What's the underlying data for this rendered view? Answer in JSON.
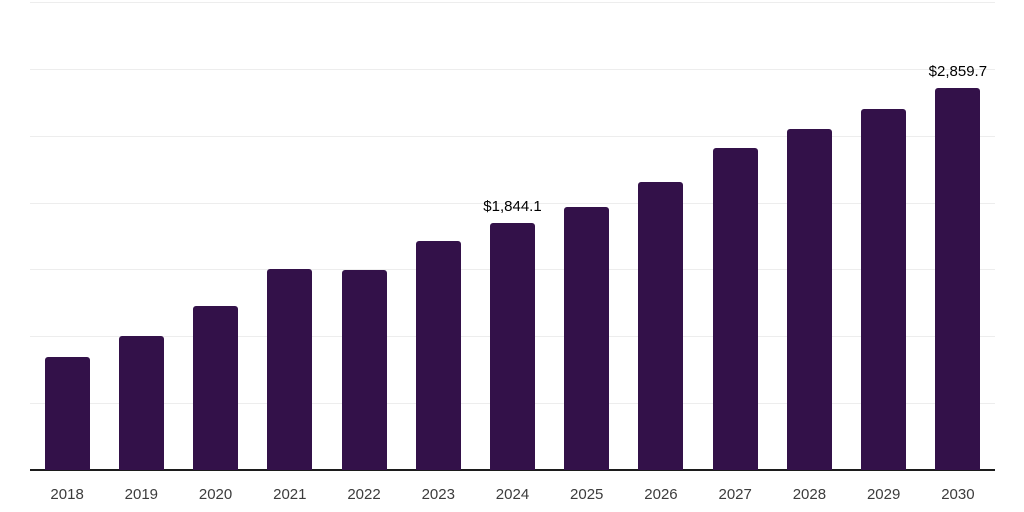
{
  "chart_data": {
    "type": "bar",
    "title": "",
    "categories": [
      "2018",
      "2019",
      "2020",
      "2021",
      "2022",
      "2023",
      "2024",
      "2025",
      "2026",
      "2027",
      "2028",
      "2029",
      "2030"
    ],
    "values": [
      842,
      1005,
      1224,
      1507,
      1496,
      1711,
      1844.1,
      1967,
      2155,
      2405,
      2547,
      2699,
      2859.7
    ],
    "data_labels": {
      "2024": "$1,844.1",
      "2030": "$2,859.7"
    },
    "xlabel": "",
    "ylabel": "",
    "ylim": [
      0,
      3500
    ],
    "gridline_step": 500,
    "grid": "horizontal",
    "y_tick_labels_visible": false,
    "legend": "none",
    "bar_color": "#331149",
    "gridline_color": "#ededed",
    "axis_line_color": "#1c1c1c",
    "x_label_color": "#3c3c3c",
    "data_label_color": "#000000",
    "background_color": "#ffffff"
  }
}
